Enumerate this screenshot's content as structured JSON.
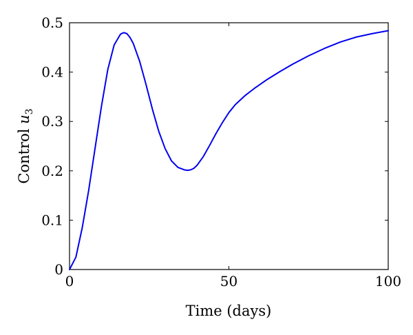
{
  "chart_data": {
    "type": "line",
    "title": "",
    "xlabel": "Time (days)",
    "ylabel_main": "Control ",
    "ylabel_var": "u",
    "ylabel_sub": "3",
    "xlim": [
      0,
      100
    ],
    "ylim": [
      0,
      0.5
    ],
    "xticks": [
      0,
      50,
      100
    ],
    "xtick_labels": [
      "0",
      "50",
      "100"
    ],
    "yticks": [
      0,
      0.1,
      0.2,
      0.3,
      0.4,
      0.5
    ],
    "ytick_labels": [
      "0",
      "0.1",
      "0.2",
      "0.3",
      "0.4",
      "0.5"
    ],
    "grid": false,
    "series": [
      {
        "color": "#0000ee",
        "x": [
          0,
          2,
          4,
          6,
          8,
          10,
          12,
          14,
          16,
          17,
          18,
          19,
          20,
          22,
          24,
          26,
          28,
          30,
          32,
          34,
          36,
          37,
          38,
          39,
          40,
          42,
          44,
          46,
          48,
          50,
          52,
          55,
          58,
          62,
          66,
          70,
          75,
          80,
          85,
          90,
          95,
          100
        ],
        "y": [
          0,
          0.025,
          0.085,
          0.16,
          0.245,
          0.33,
          0.405,
          0.455,
          0.477,
          0.48,
          0.478,
          0.47,
          0.458,
          0.422,
          0.375,
          0.325,
          0.28,
          0.245,
          0.22,
          0.207,
          0.202,
          0.201,
          0.202,
          0.205,
          0.211,
          0.229,
          0.252,
          0.276,
          0.298,
          0.318,
          0.334,
          0.352,
          0.367,
          0.385,
          0.401,
          0.416,
          0.433,
          0.448,
          0.461,
          0.471,
          0.478,
          0.484
        ]
      }
    ]
  }
}
